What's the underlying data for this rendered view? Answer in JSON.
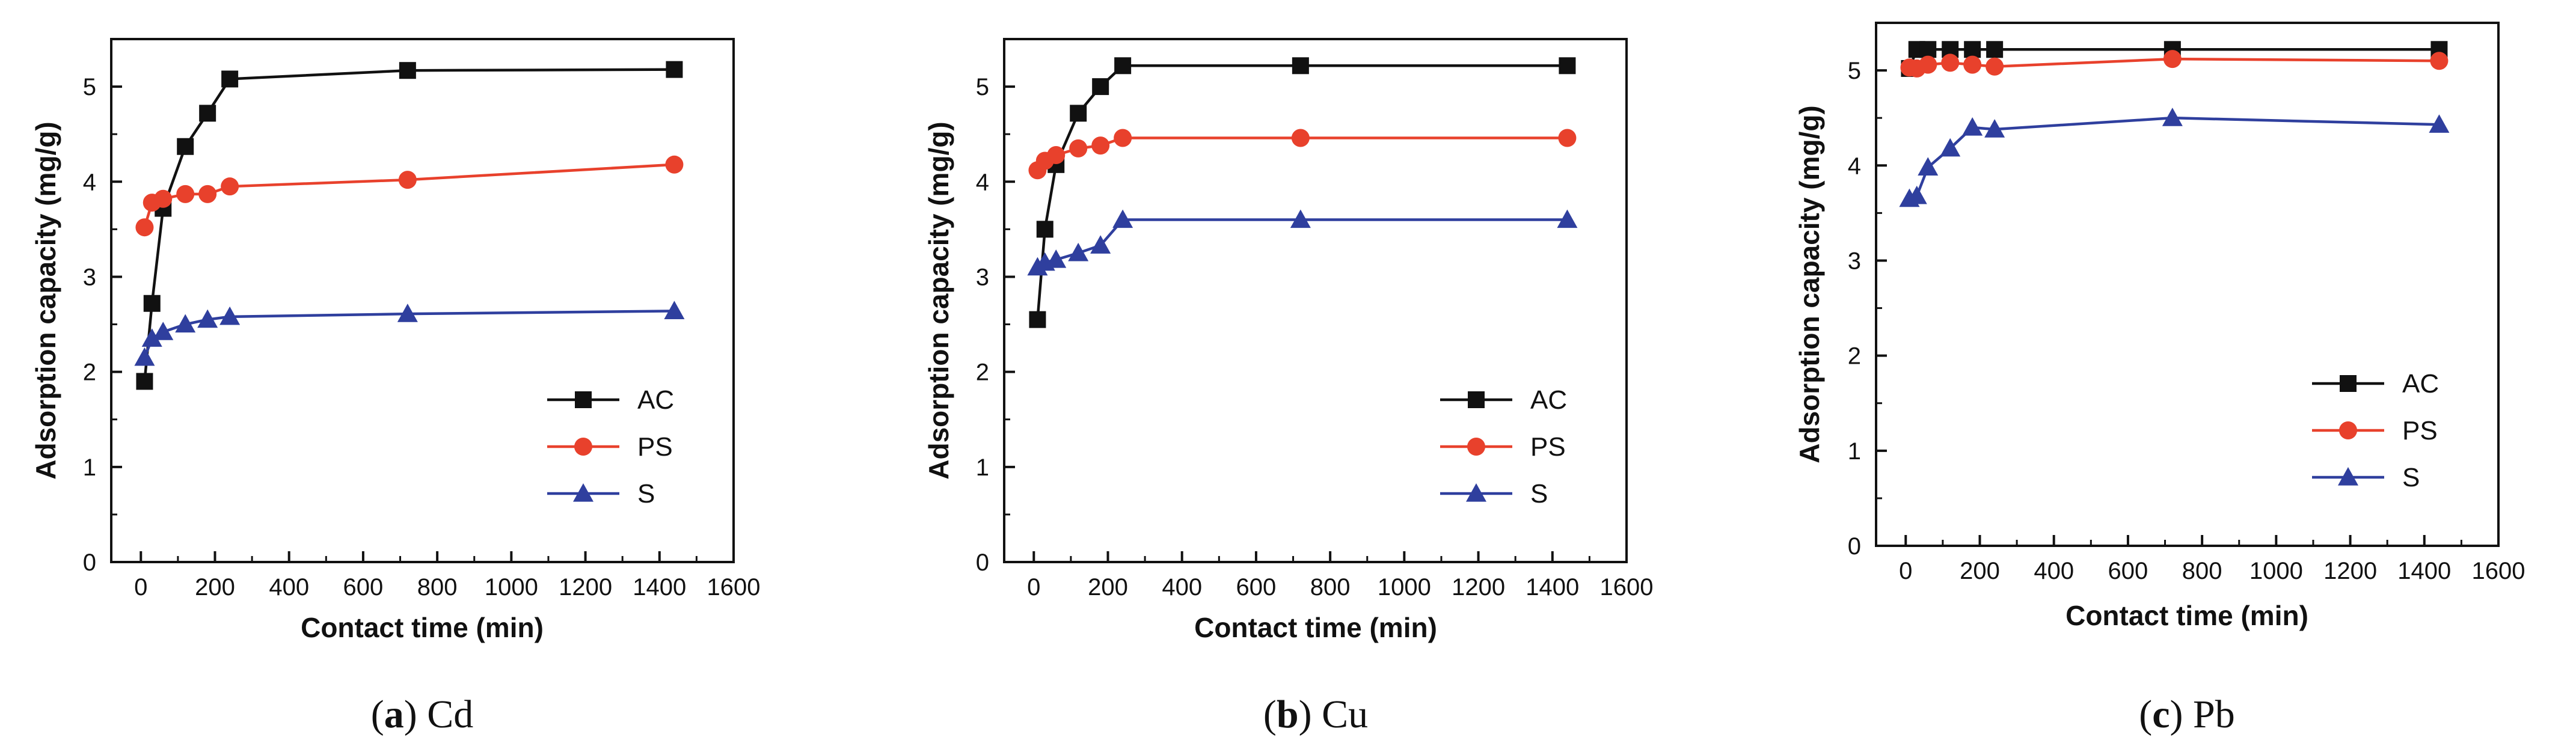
{
  "chart_data": [
    {
      "type": "line",
      "panel_letter": "a",
      "caption": "Cd",
      "xlabel": "Contact time (min)",
      "ylabel": "Adsorption capacity (mg/g)",
      "xlim": [
        -80,
        1600
      ],
      "ylim": [
        0,
        5.5
      ],
      "xticks": [
        0,
        200,
        400,
        600,
        800,
        1000,
        1200,
        1400,
        1600
      ],
      "yticks": [
        0,
        1,
        2,
        3,
        4,
        5
      ],
      "legend_position": "bottom-right",
      "series": [
        {
          "name": "AC",
          "color": "#111111",
          "marker": "square",
          "x": [
            10,
            30,
            60,
            120,
            180,
            240,
            720,
            1440
          ],
          "y": [
            1.9,
            2.72,
            3.72,
            4.37,
            4.72,
            5.08,
            5.17,
            5.18
          ]
        },
        {
          "name": "PS",
          "color": "#e8412c",
          "marker": "circle",
          "x": [
            10,
            30,
            60,
            120,
            180,
            240,
            720,
            1440
          ],
          "y": [
            3.52,
            3.78,
            3.82,
            3.87,
            3.87,
            3.95,
            4.02,
            4.18
          ]
        },
        {
          "name": "S",
          "color": "#2f3f9e",
          "marker": "triangle",
          "x": [
            10,
            30,
            60,
            120,
            180,
            240,
            720,
            1440
          ],
          "y": [
            2.15,
            2.35,
            2.42,
            2.5,
            2.55,
            2.58,
            2.61,
            2.64
          ]
        }
      ]
    },
    {
      "type": "line",
      "panel_letter": "b",
      "caption": "Cu",
      "xlabel": "Contact time (min)",
      "ylabel": "Adsorption capacity (mg/g)",
      "xlim": [
        -80,
        1600
      ],
      "ylim": [
        0,
        5.5
      ],
      "xticks": [
        0,
        200,
        400,
        600,
        800,
        1000,
        1200,
        1400,
        1600
      ],
      "yticks": [
        0,
        1,
        2,
        3,
        4,
        5
      ],
      "legend_position": "bottom-right",
      "series": [
        {
          "name": "AC",
          "color": "#111111",
          "marker": "square",
          "x": [
            10,
            30,
            60,
            120,
            180,
            240,
            720,
            1440
          ],
          "y": [
            2.55,
            3.5,
            4.18,
            4.72,
            5.0,
            5.22,
            5.22,
            5.22
          ]
        },
        {
          "name": "PS",
          "color": "#e8412c",
          "marker": "circle",
          "x": [
            10,
            30,
            60,
            120,
            180,
            240,
            720,
            1440
          ],
          "y": [
            4.12,
            4.22,
            4.28,
            4.35,
            4.38,
            4.46,
            4.46,
            4.46
          ]
        },
        {
          "name": "S",
          "color": "#2f3f9e",
          "marker": "triangle",
          "x": [
            10,
            30,
            60,
            120,
            180,
            240,
            720,
            1440
          ],
          "y": [
            3.1,
            3.15,
            3.18,
            3.25,
            3.33,
            3.6,
            3.6,
            3.6
          ]
        }
      ]
    },
    {
      "type": "line",
      "panel_letter": "c",
      "caption": "Pb",
      "xlabel": "Contact time (min)",
      "ylabel": "Adsorption capacity (mg/g)",
      "xlim": [
        -80,
        1600
      ],
      "ylim": [
        0,
        5.5
      ],
      "xticks": [
        0,
        200,
        400,
        600,
        800,
        1000,
        1200,
        1400,
        1600
      ],
      "yticks": [
        0,
        1,
        2,
        3,
        4,
        5
      ],
      "legend_position": "bottom-right",
      "series": [
        {
          "name": "AC",
          "color": "#111111",
          "marker": "square",
          "x": [
            10,
            30,
            60,
            120,
            180,
            240,
            720,
            1440
          ],
          "y": [
            5.02,
            5.22,
            5.22,
            5.22,
            5.22,
            5.22,
            5.22,
            5.22
          ]
        },
        {
          "name": "PS",
          "color": "#e8412c",
          "marker": "circle",
          "x": [
            10,
            30,
            60,
            120,
            180,
            240,
            720,
            1440
          ],
          "y": [
            5.03,
            5.02,
            5.06,
            5.08,
            5.06,
            5.04,
            5.12,
            5.1
          ]
        },
        {
          "name": "S",
          "color": "#2f3f9e",
          "marker": "triangle",
          "x": [
            10,
            30,
            60,
            120,
            180,
            240,
            720,
            1440
          ],
          "y": [
            3.65,
            3.68,
            3.98,
            4.18,
            4.4,
            4.38,
            4.5,
            4.43
          ]
        }
      ]
    }
  ]
}
